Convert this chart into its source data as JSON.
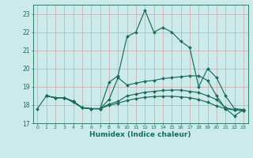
{
  "xlabel": "Humidex (Indice chaleur)",
  "bg_color": "#cceaea",
  "line_color": "#1a6b5a",
  "grid_color": "#b8d8d8",
  "xlim": [
    -0.5,
    23.5
  ],
  "ylim": [
    17.0,
    23.5
  ],
  "yticks": [
    17,
    18,
    19,
    20,
    21,
    22,
    23
  ],
  "xticks": [
    0,
    1,
    2,
    3,
    4,
    5,
    6,
    7,
    8,
    9,
    10,
    11,
    12,
    13,
    14,
    15,
    16,
    17,
    18,
    19,
    20,
    21,
    22,
    23
  ],
  "lines": [
    {
      "x": [
        0,
        1,
        2,
        3,
        4,
        5,
        6,
        7,
        8,
        9,
        10,
        11,
        12,
        13,
        14,
        15,
        16,
        17,
        18,
        19,
        20,
        21,
        22,
        23
      ],
      "y": [
        17.8,
        18.5,
        18.4,
        18.4,
        18.15,
        17.85,
        17.8,
        17.8,
        19.25,
        19.6,
        21.75,
        22.0,
        23.2,
        22.0,
        22.25,
        22.0,
        21.5,
        21.15,
        19.0,
        20.0,
        19.5,
        18.5,
        17.8,
        17.75
      ]
    },
    {
      "x": [
        1,
        2,
        3,
        4,
        5,
        6,
        7,
        8,
        9,
        10,
        11,
        12,
        13,
        14,
        15,
        16,
        17,
        18,
        19,
        20,
        21,
        22,
        23
      ],
      "y": [
        18.5,
        18.4,
        18.4,
        18.2,
        17.85,
        17.8,
        17.8,
        18.3,
        19.5,
        19.1,
        19.2,
        19.3,
        19.35,
        19.45,
        19.5,
        19.55,
        19.6,
        19.6,
        19.35,
        18.5,
        17.8,
        17.4,
        17.75
      ]
    },
    {
      "x": [
        1,
        2,
        3,
        4,
        5,
        6,
        7,
        8,
        9,
        10,
        11,
        12,
        13,
        14,
        15,
        16,
        17,
        18,
        19,
        20,
        21,
        22,
        23
      ],
      "y": [
        18.5,
        18.4,
        18.4,
        18.2,
        17.85,
        17.8,
        17.8,
        18.05,
        18.2,
        18.5,
        18.6,
        18.7,
        18.75,
        18.8,
        18.82,
        18.82,
        18.75,
        18.68,
        18.5,
        18.3,
        17.85,
        17.75,
        17.7
      ]
    },
    {
      "x": [
        1,
        2,
        3,
        4,
        5,
        6,
        7,
        8,
        9,
        10,
        11,
        12,
        13,
        14,
        15,
        16,
        17,
        18,
        19,
        20,
        21,
        22,
        23
      ],
      "y": [
        18.5,
        18.4,
        18.4,
        18.2,
        17.85,
        17.8,
        17.8,
        17.98,
        18.1,
        18.25,
        18.35,
        18.42,
        18.46,
        18.48,
        18.48,
        18.45,
        18.4,
        18.3,
        18.15,
        17.95,
        17.8,
        17.72,
        17.7
      ]
    }
  ]
}
